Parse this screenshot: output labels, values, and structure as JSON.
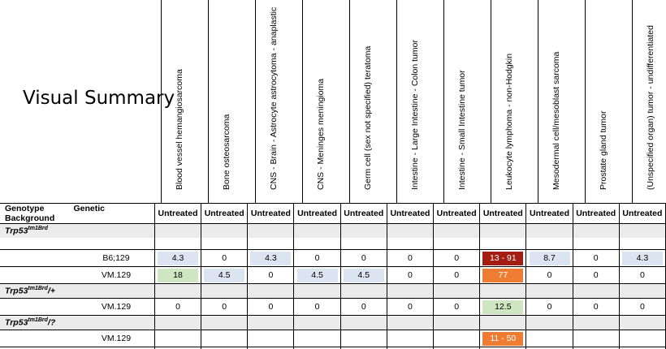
{
  "title": "Visual Summary",
  "columns": [
    "Blood vessel hemangiosarcoma",
    "Bone osteosarcoma",
    "CNS - Brain - Astrocyte astrocytoma - anaplastic",
    "CNS - Meninges meningioma",
    "Germ cell (sex not specified) teratoma",
    "Intestine - Large Intestine - Colon tumor",
    "Intestine - Small Intestine tumor",
    "Leukocyte lymphoma - non-Hodgkin",
    "Mesodermal cell/mesoblast sarcoma",
    "Prostate gland tumor",
    "(Unspecified organ) tumor - undifferentiated"
  ],
  "header": {
    "genotype_label": "Genotype",
    "background_label": "Genetic Background",
    "treatments": [
      "Untreated",
      "Untreated",
      "Untreated",
      "Untreated",
      "Untreated",
      "Untreated",
      "Untreated",
      "Untreated",
      "Untreated",
      "Untreated",
      "Untreated"
    ]
  },
  "colors": {
    "light_blue": "#dde4f1",
    "light_green": "#cfe6c2",
    "dark_red": "#a31d12",
    "orange": "#ee7d33",
    "band_gray": "#ebebeb"
  },
  "groups": [
    {
      "genotype": "Trp53",
      "allele": "tm1Brd",
      "suffix": "",
      "rows": [
        {
          "background": "B6;129",
          "values": [
            "4.3",
            "0",
            "4.3",
            "0",
            "0",
            "0",
            "0",
            "13 - 91",
            "8.7",
            "0",
            "4.3"
          ],
          "colors": [
            "light_blue",
            "",
            "light_blue",
            "",
            "",
            "",
            "",
            "dark_red",
            "light_blue",
            "",
            "light_blue"
          ]
        },
        {
          "background": "VM.129",
          "values": [
            "18",
            "4.5",
            "0",
            "4.5",
            "4.5",
            "0",
            "0",
            "77",
            "0",
            "0",
            "0"
          ],
          "colors": [
            "light_green",
            "light_blue",
            "",
            "light_blue",
            "light_blue",
            "",
            "",
            "orange",
            "",
            "",
            ""
          ]
        }
      ]
    },
    {
      "genotype": "Trp53",
      "allele": "tm1Brd",
      "suffix": "/+",
      "rows": [
        {
          "background": "VM.129",
          "values": [
            "0",
            "0",
            "0",
            "0",
            "0",
            "0",
            "0",
            "12.5",
            "0",
            "0",
            "0"
          ],
          "colors": [
            "",
            "",
            "",
            "",
            "",
            "",
            "",
            "light_green",
            "",
            "",
            ""
          ]
        }
      ]
    },
    {
      "genotype": "Trp53",
      "allele": "tm1Brd",
      "suffix": "/?",
      "rows": [
        {
          "background": "VM.129",
          "values": [
            "",
            "",
            "",
            "",
            "",
            "",
            "",
            "11 - 50",
            "",
            "",
            ""
          ],
          "colors": [
            "",
            "",
            "",
            "",
            "",
            "",
            "",
            "orange",
            "",
            "",
            ""
          ]
        }
      ]
    }
  ]
}
